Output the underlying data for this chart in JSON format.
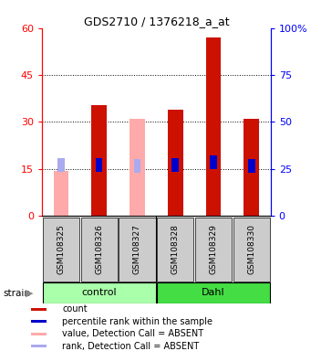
{
  "title": "GDS2710 / 1376218_a_at",
  "samples": [
    "GSM108325",
    "GSM108326",
    "GSM108327",
    "GSM108328",
    "GSM108329",
    "GSM108330"
  ],
  "count_values": [
    14.5,
    35.5,
    31.0,
    34.0,
    57.0,
    31.0
  ],
  "rank_values": [
    27.0,
    27.0,
    26.5,
    27.0,
    28.5,
    26.5
  ],
  "absent": [
    true,
    false,
    true,
    false,
    false,
    false
  ],
  "groups": [
    {
      "label": "control",
      "start": 0,
      "end": 3,
      "color": "#aaffaa"
    },
    {
      "label": "Dahl",
      "start": 3,
      "end": 6,
      "color": "#44dd44"
    }
  ],
  "ylim_left": [
    0,
    60
  ],
  "ylim_right": [
    0,
    100
  ],
  "yticks_left": [
    0,
    15,
    30,
    45,
    60
  ],
  "ytick_labels_left": [
    "0",
    "15",
    "30",
    "45",
    "60"
  ],
  "ytick_labels_right": [
    "0",
    "25",
    "50",
    "75",
    "100%"
  ],
  "bar_width": 0.4,
  "color_present_bar": "#cc1100",
  "color_absent_bar": "#ffaaaa",
  "color_present_rank": "#0000cc",
  "color_absent_rank": "#aaaaee",
  "legend_items": [
    {
      "color": "#cc1100",
      "label": "count"
    },
    {
      "color": "#0000cc",
      "label": "percentile rank within the sample"
    },
    {
      "color": "#ffaaaa",
      "label": "value, Detection Call = ABSENT"
    },
    {
      "color": "#aaaaee",
      "label": "rank, Detection Call = ABSENT"
    }
  ]
}
